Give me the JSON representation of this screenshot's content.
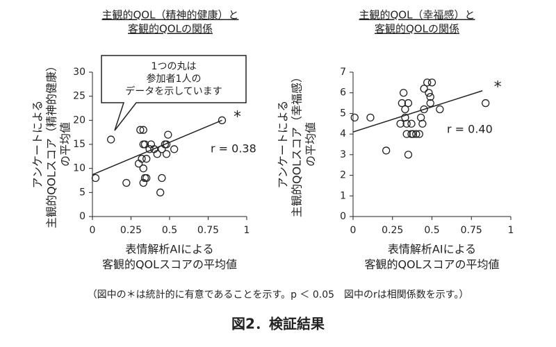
{
  "chart_data": [
    {
      "type": "scatter",
      "title": [
        "主観的QOL（精神的健康）と",
        "客観的QOLの関係"
      ],
      "y_label": [
        "アンケートによる",
        "主観的QOLスコア（精神的健康）",
        "の平均値"
      ],
      "x_label": [
        "表情解析AIによる",
        "客観的QOLスコアの平均値"
      ],
      "x": [
        0.02,
        0.12,
        0.22,
        0.31,
        0.33,
        0.3,
        0.32,
        0.33,
        0.34,
        0.35,
        0.33,
        0.34,
        0.33,
        0.35,
        0.37,
        0.38,
        0.4,
        0.42,
        0.44,
        0.45,
        0.45,
        0.47,
        0.48,
        0.48,
        0.49,
        0.53,
        0.84
      ],
      "values": [
        8,
        16,
        7,
        18,
        18,
        11,
        12,
        15,
        15,
        12,
        10,
        8,
        7,
        8,
        14,
        15,
        14,
        13,
        5,
        8,
        14,
        15,
        15,
        13,
        17,
        14,
        20
      ],
      "trend": {
        "x": [
          0,
          0.84
        ],
        "values": [
          8.7,
          20
        ]
      },
      "r_label": "r = 0.38",
      "significance_mark": "*",
      "annotation": [
        "1つの丸は",
        "参加者1人の",
        "データを示しています"
      ],
      "xlim": [
        0,
        1
      ],
      "xticks": [
        0,
        0.25,
        0.5,
        0.75,
        1
      ],
      "ylim": [
        0,
        30
      ],
      "yticks": [
        0,
        5,
        10,
        15,
        20,
        25,
        30
      ]
    },
    {
      "type": "scatter",
      "title": [
        "主観的QOL（幸福感）と",
        "客観的QOLの関係"
      ],
      "y_label": [
        "アンケートによる",
        "主観的QOLスコア（幸福感）",
        "の平均値"
      ],
      "x_label": [
        "表情解析AIによる",
        "客観的QOLスコアの平均値"
      ],
      "x": [
        0.01,
        0.11,
        0.21,
        0.3,
        0.31,
        0.32,
        0.33,
        0.33,
        0.34,
        0.34,
        0.35,
        0.35,
        0.37,
        0.37,
        0.38,
        0.4,
        0.42,
        0.43,
        0.44,
        0.45,
        0.45,
        0.47,
        0.48,
        0.49,
        0.5,
        0.49,
        0.55,
        0.84
      ],
      "values": [
        4.8,
        4.8,
        3.2,
        4.5,
        5.5,
        6,
        5.2,
        4.8,
        4.5,
        4,
        5.5,
        3,
        4,
        4.5,
        4,
        4,
        4,
        4.8,
        4.5,
        6.2,
        5.2,
        6.5,
        6,
        5.8,
        6.5,
        5.5,
        5.2,
        5.5
      ],
      "trend": {
        "x": [
          0,
          0.82
        ],
        "values": [
          4.1,
          6.1
        ]
      },
      "r_label": "r = 0.40",
      "significance_mark": "*",
      "xlim": [
        0,
        1
      ],
      "xticks": [
        0,
        0.25,
        0.5,
        0.75,
        1
      ],
      "ylim": [
        0,
        7
      ],
      "yticks": [
        0,
        1,
        2,
        3,
        4,
        5,
        6,
        7
      ]
    }
  ],
  "footnote": "（図中の＊は統計的に有意であることを示す。p ＜ 0.05　図中のrは相関係数を示す。）",
  "caption": "図2．検証結果"
}
